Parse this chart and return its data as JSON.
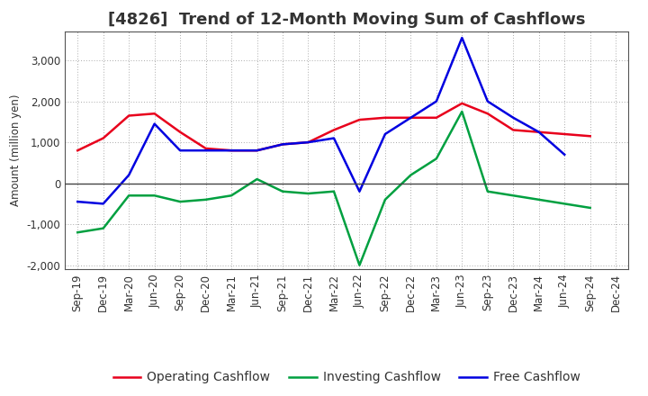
{
  "title": "[4826]  Trend of 12-Month Moving Sum of Cashflows",
  "ylabel": "Amount (million yen)",
  "xlabels": [
    "Sep-19",
    "Dec-19",
    "Mar-20",
    "Jun-20",
    "Sep-20",
    "Dec-20",
    "Mar-21",
    "Jun-21",
    "Sep-21",
    "Dec-21",
    "Mar-22",
    "Jun-22",
    "Sep-22",
    "Dec-22",
    "Mar-23",
    "Jun-23",
    "Sep-23",
    "Dec-23",
    "Mar-24",
    "Jun-24",
    "Sep-24",
    "Dec-24"
  ],
  "operating": [
    800,
    1100,
    1650,
    1700,
    1250,
    850,
    800,
    800,
    950,
    1000,
    1300,
    1550,
    1600,
    1600,
    1600,
    1950,
    1700,
    1300,
    1250,
    1200,
    1150,
    null
  ],
  "investing": [
    -1200,
    -1100,
    -300,
    -300,
    -450,
    -400,
    -300,
    100,
    -200,
    -250,
    -200,
    -2000,
    -400,
    200,
    600,
    1750,
    -200,
    -300,
    -400,
    -500,
    -600,
    null
  ],
  "free": [
    -450,
    -500,
    200,
    1450,
    800,
    800,
    800,
    800,
    950,
    1000,
    1100,
    -200,
    1200,
    1600,
    2000,
    3550,
    2000,
    1600,
    1250,
    700,
    null,
    null
  ],
  "operating_color": "#e8001c",
  "investing_color": "#00a040",
  "free_color": "#0000e0",
  "ylim": [
    -2100,
    3700
  ],
  "yticks": [
    -2000,
    -1000,
    0,
    1000,
    2000,
    3000
  ],
  "background_color": "#ffffff",
  "grid_color": "#aaaaaa",
  "title_fontsize": 13,
  "legend_fontsize": 10,
  "axis_fontsize": 8.5,
  "title_color": "#333333"
}
